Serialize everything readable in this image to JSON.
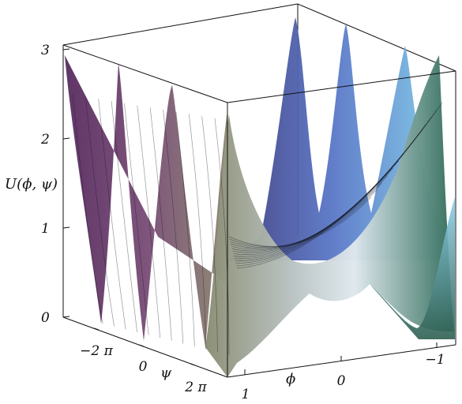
{
  "chart_data": {
    "type": "surface3d",
    "title": "",
    "zlabel": "U(ϕ, ψ)",
    "xlabel": "ψ",
    "ylabel": "ϕ",
    "zlim": [
      0,
      3
    ],
    "z_ticks": [
      "0",
      "1",
      "2",
      "3"
    ],
    "psi_ticks": [
      "−2 π",
      "0",
      "2 π"
    ],
    "phi_ticks": [
      "1",
      "0",
      "−1"
    ],
    "psi_range": [
      "-2π",
      "2π"
    ],
    "phi_range": [
      1,
      -1
    ],
    "surface": {
      "description_peaks_along_psi_edge": 4,
      "description_peaks_along_far_edge": 3,
      "minimum_value": 0,
      "maximum_value": 3,
      "colors": [
        "#6a3f72",
        "#8a8a6a",
        "#e8eef2",
        "#2f6a55",
        "#5a90c8",
        "#3e3f86"
      ]
    },
    "grid": false,
    "box": true
  }
}
